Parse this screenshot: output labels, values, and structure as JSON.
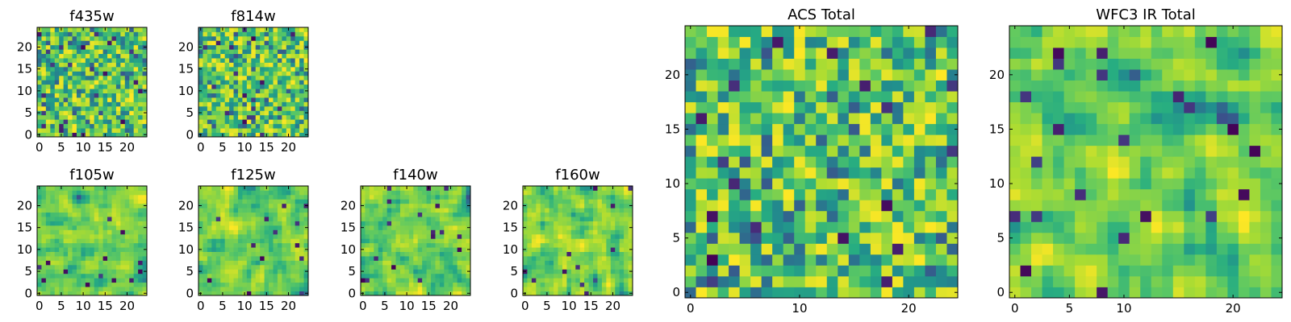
{
  "chart_data": [
    {
      "type": "heatmap",
      "id": "f435w",
      "title": "f435w",
      "grid_size": 25,
      "xticks": [
        0,
        5,
        10,
        15,
        20
      ],
      "yticks": [
        0,
        5,
        10,
        15,
        20
      ],
      "xlim": [
        -0.5,
        24.5
      ],
      "ylim": [
        -0.5,
        24.5
      ],
      "colormap": "viridis",
      "smoothness": 0,
      "seed": 11,
      "bias": 0.55
    },
    {
      "type": "heatmap",
      "id": "f814w",
      "title": "f814w",
      "grid_size": 25,
      "xticks": [
        0,
        5,
        10,
        15,
        20
      ],
      "yticks": [
        0,
        5,
        10,
        15,
        20
      ],
      "xlim": [
        -0.5,
        24.5
      ],
      "ylim": [
        -0.5,
        24.5
      ],
      "colormap": "viridis",
      "smoothness": 0,
      "seed": 23,
      "bias": 0.55
    },
    {
      "type": "heatmap",
      "id": "f105w",
      "title": "f105w",
      "grid_size": 25,
      "xticks": [
        0,
        5,
        10,
        15,
        20
      ],
      "yticks": [
        0,
        5,
        10,
        15,
        20
      ],
      "xlim": [
        -0.5,
        24.5
      ],
      "ylim": [
        -0.5,
        24.5
      ],
      "colormap": "viridis",
      "smoothness": 1,
      "seed": 37,
      "bias": 0.5
    },
    {
      "type": "heatmap",
      "id": "f125w",
      "title": "f125w",
      "grid_size": 25,
      "xticks": [
        0,
        5,
        10,
        15,
        20
      ],
      "yticks": [
        0,
        5,
        10,
        15,
        20
      ],
      "xlim": [
        -0.5,
        24.5
      ],
      "ylim": [
        -0.5,
        24.5
      ],
      "colormap": "viridis",
      "smoothness": 1,
      "seed": 41,
      "bias": 0.5
    },
    {
      "type": "heatmap",
      "id": "f140w",
      "title": "f140w",
      "grid_size": 25,
      "xticks": [
        0,
        5,
        10,
        15,
        20
      ],
      "yticks": [
        0,
        5,
        10,
        15,
        20
      ],
      "xlim": [
        -0.5,
        24.5
      ],
      "ylim": [
        -0.5,
        24.5
      ],
      "colormap": "viridis",
      "smoothness": 1,
      "seed": 53,
      "bias": 0.5
    },
    {
      "type": "heatmap",
      "id": "f160w",
      "title": "f160w",
      "grid_size": 25,
      "xticks": [
        0,
        5,
        10,
        15,
        20
      ],
      "yticks": [
        0,
        5,
        10,
        15,
        20
      ],
      "xlim": [
        -0.5,
        24.5
      ],
      "ylim": [
        -0.5,
        24.5
      ],
      "colormap": "viridis",
      "smoothness": 1,
      "seed": 67,
      "bias": 0.5
    },
    {
      "type": "heatmap",
      "id": "acs-total",
      "title": "ACS Total",
      "grid_size": 25,
      "xticks": [
        0,
        10,
        20
      ],
      "yticks": [
        0,
        5,
        10,
        15,
        20
      ],
      "xlim": [
        -0.5,
        24.5
      ],
      "ylim": [
        -0.5,
        24.5
      ],
      "colormap": "viridis",
      "smoothness": 0,
      "seed": 79,
      "bias": 0.6
    },
    {
      "type": "heatmap",
      "id": "wfc3-ir-total",
      "title": "WFC3 IR Total",
      "grid_size": 25,
      "xticks": [
        0,
        5,
        10,
        20
      ],
      "yticks": [
        0,
        5,
        10,
        15,
        20
      ],
      "xlim": [
        -0.5,
        24.5
      ],
      "ylim": [
        -0.5,
        24.5
      ],
      "colormap": "viridis",
      "smoothness": 1,
      "seed": 97,
      "bias": 0.5
    }
  ]
}
